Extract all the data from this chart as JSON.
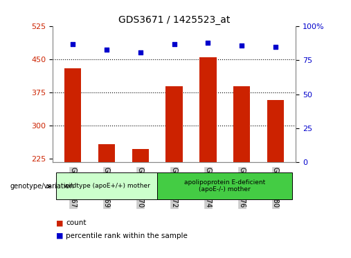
{
  "title": "GDS3671 / 1425523_at",
  "samples": [
    "GSM142367",
    "GSM142369",
    "GSM142370",
    "GSM142372",
    "GSM142374",
    "GSM142376",
    "GSM142380"
  ],
  "bar_values": [
    430,
    258,
    248,
    390,
    455,
    390,
    358
  ],
  "percentile_values": [
    87,
    83,
    81,
    87,
    88,
    86,
    85
  ],
  "bar_color": "#cc2200",
  "dot_color": "#0000cc",
  "ymin": 218,
  "ymax": 525,
  "yticks_left": [
    225,
    300,
    375,
    450,
    525
  ],
  "yticks_right": [
    0,
    25,
    50,
    75,
    100
  ],
  "grid_values": [
    300,
    375,
    450
  ],
  "group1_label": "wildtype (apoE+/+) mother",
  "group2_label": "apolipoprotein E-deficient\n(apoE-/-) mother",
  "group1_indices": [
    0,
    1,
    2
  ],
  "group2_indices": [
    3,
    4,
    5,
    6
  ],
  "bar_width": 0.5,
  "legend_count_label": "count",
  "legend_percentile_label": "percentile rank within the sample",
  "genotype_label": "genotype/variation",
  "group1_color": "#ccffcc",
  "group2_color": "#44cc44",
  "sample_box_color": "#cccccc",
  "title_fontsize": 10,
  "tick_fontsize": 8,
  "right_axis_color": "#0000cc",
  "left_axis_color": "#cc2200",
  "spine_color": "#888888"
}
